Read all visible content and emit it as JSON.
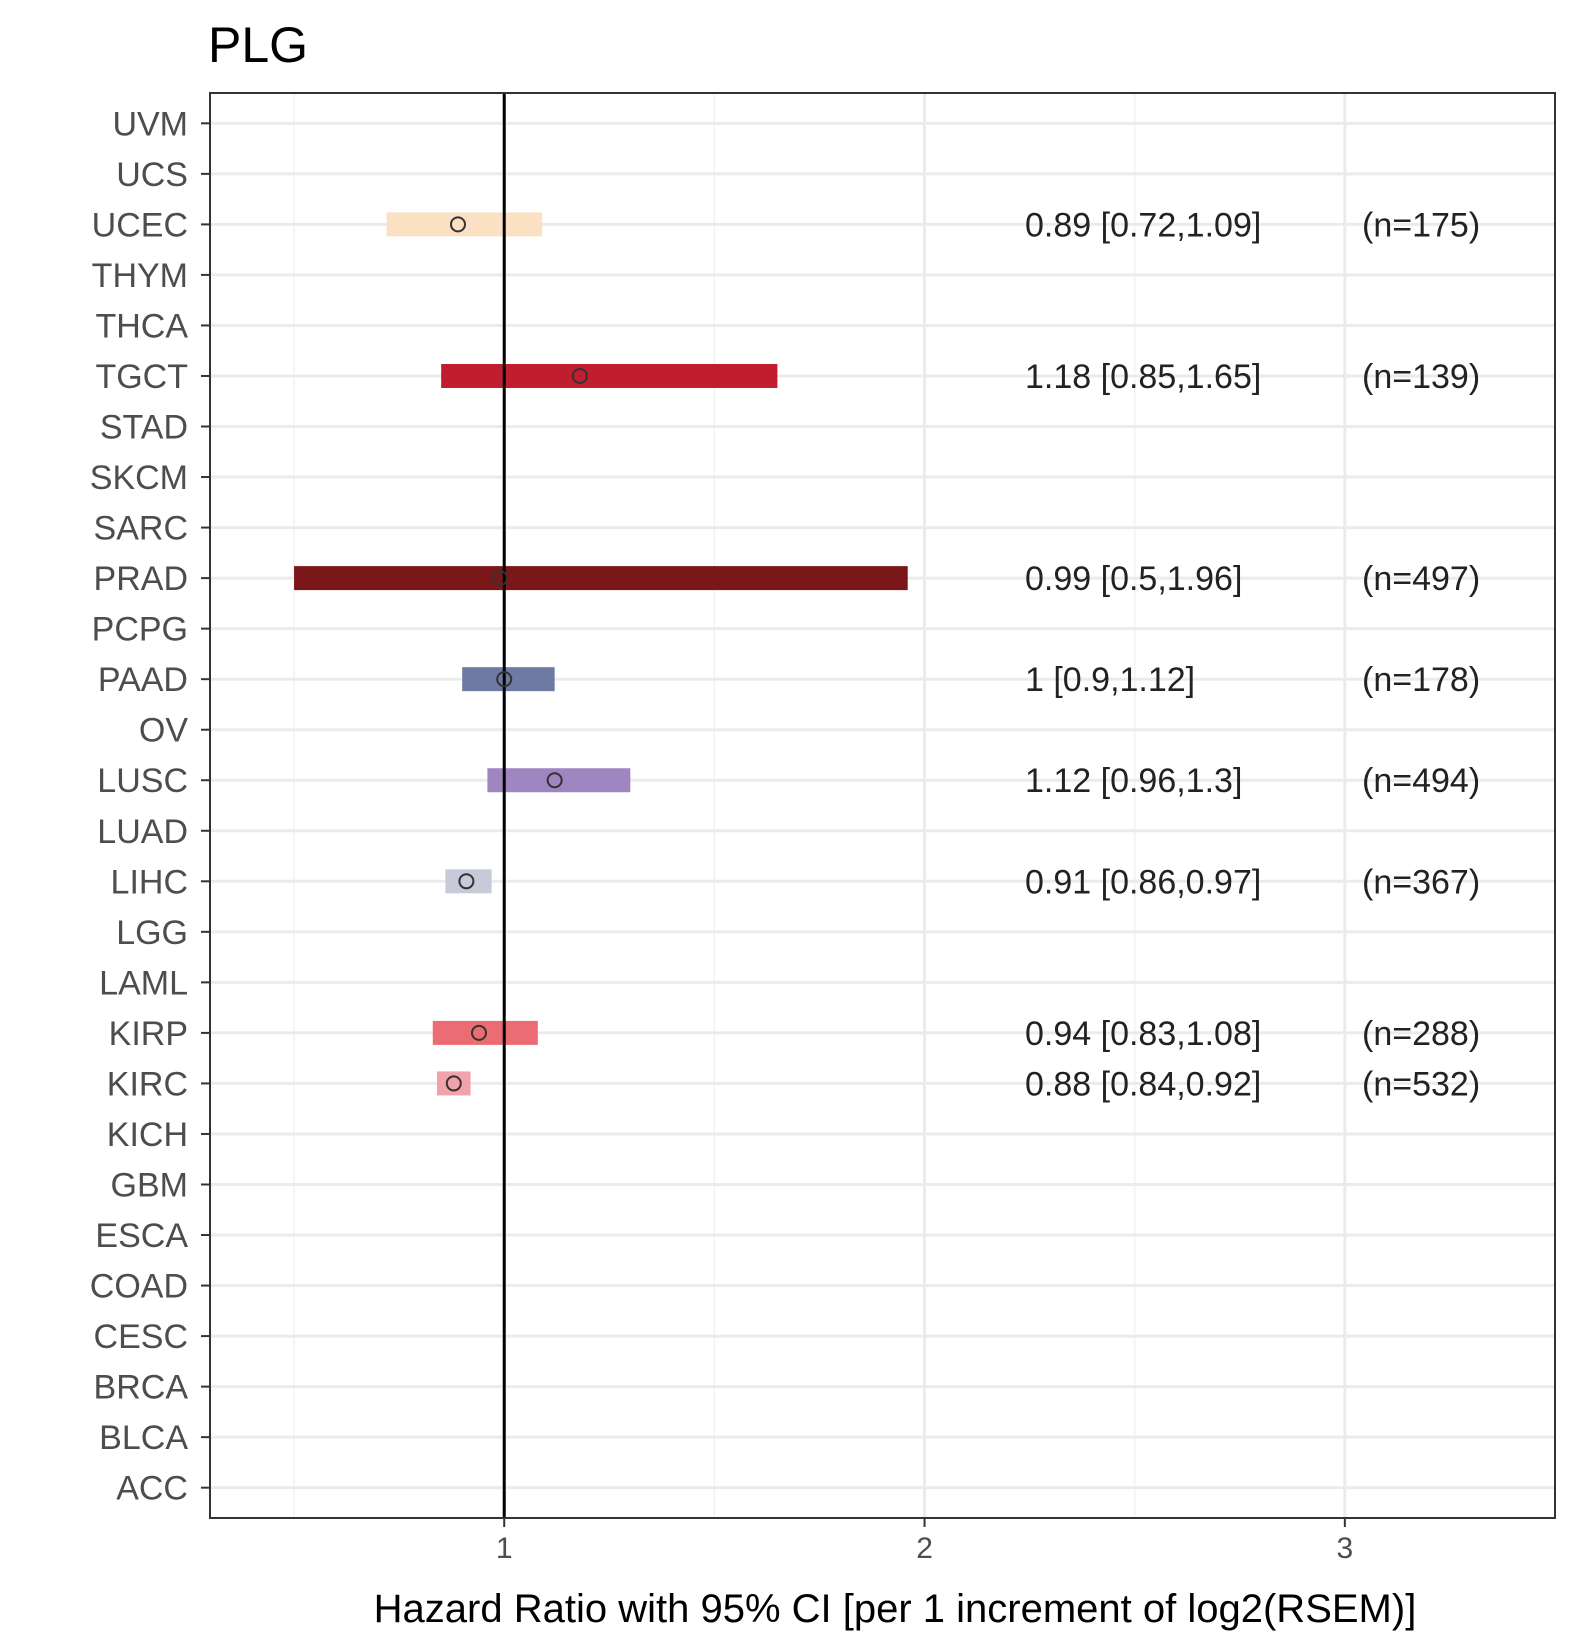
{
  "chart_data": {
    "type": "forest",
    "title": "PLG",
    "xlabel": "Hazard Ratio with 95% CI [per 1 increment of log2(RSEM)]",
    "xlim": [
      0.3,
      3.5
    ],
    "x_ticks": [
      1,
      2,
      3
    ],
    "x_tick_labels": [
      "1",
      "2",
      "3"
    ],
    "reference_line": 1,
    "grid": true,
    "categories": [
      "UVM",
      "UCS",
      "UCEC",
      "THYM",
      "THCA",
      "TGCT",
      "STAD",
      "SKCM",
      "SARC",
      "PRAD",
      "PCPG",
      "PAAD",
      "OV",
      "LUSC",
      "LUAD",
      "LIHC",
      "LGG",
      "LAML",
      "KIRP",
      "KIRC",
      "KICH",
      "GBM",
      "ESCA",
      "COAD",
      "CESC",
      "BRCA",
      "BLCA",
      "ACC"
    ],
    "estimates": [
      {
        "category": "UCEC",
        "hr": 0.89,
        "lower": 0.72,
        "upper": 1.09,
        "color": "#fce0c3",
        "label": "0.89 [0.72,1.09]",
        "n_label": "(n=175)"
      },
      {
        "category": "TGCT",
        "hr": 1.18,
        "lower": 0.85,
        "upper": 1.65,
        "color": "#c01e2e",
        "label": "1.18 [0.85,1.65]",
        "n_label": "(n=139)"
      },
      {
        "category": "PRAD",
        "hr": 0.99,
        "lower": 0.5,
        "upper": 1.96,
        "color": "#7b1719",
        "label": "0.99 [0.5,1.96]",
        "n_label": "(n=497)"
      },
      {
        "category": "PAAD",
        "hr": 1.0,
        "lower": 0.9,
        "upper": 1.12,
        "color": "#6e7aa2",
        "label": "1 [0.9,1.12]",
        "n_label": "(n=178)"
      },
      {
        "category": "LUSC",
        "hr": 1.12,
        "lower": 0.96,
        "upper": 1.3,
        "color": "#a086c0",
        "label": "1.12 [0.96,1.3]",
        "n_label": "(n=494)"
      },
      {
        "category": "LIHC",
        "hr": 0.91,
        "lower": 0.86,
        "upper": 0.97,
        "color": "#c8cada",
        "label": "0.91 [0.86,0.97]",
        "n_label": "(n=367)"
      },
      {
        "category": "KIRP",
        "hr": 0.94,
        "lower": 0.83,
        "upper": 1.08,
        "color": "#ec6c74",
        "label": "0.94 [0.83,1.08]",
        "n_label": "(n=288)"
      },
      {
        "category": "KIRC",
        "hr": 0.88,
        "lower": 0.84,
        "upper": 0.92,
        "color": "#f1a3ab",
        "label": "0.88 [0.84,0.92]",
        "n_label": "(n=532)"
      }
    ]
  }
}
